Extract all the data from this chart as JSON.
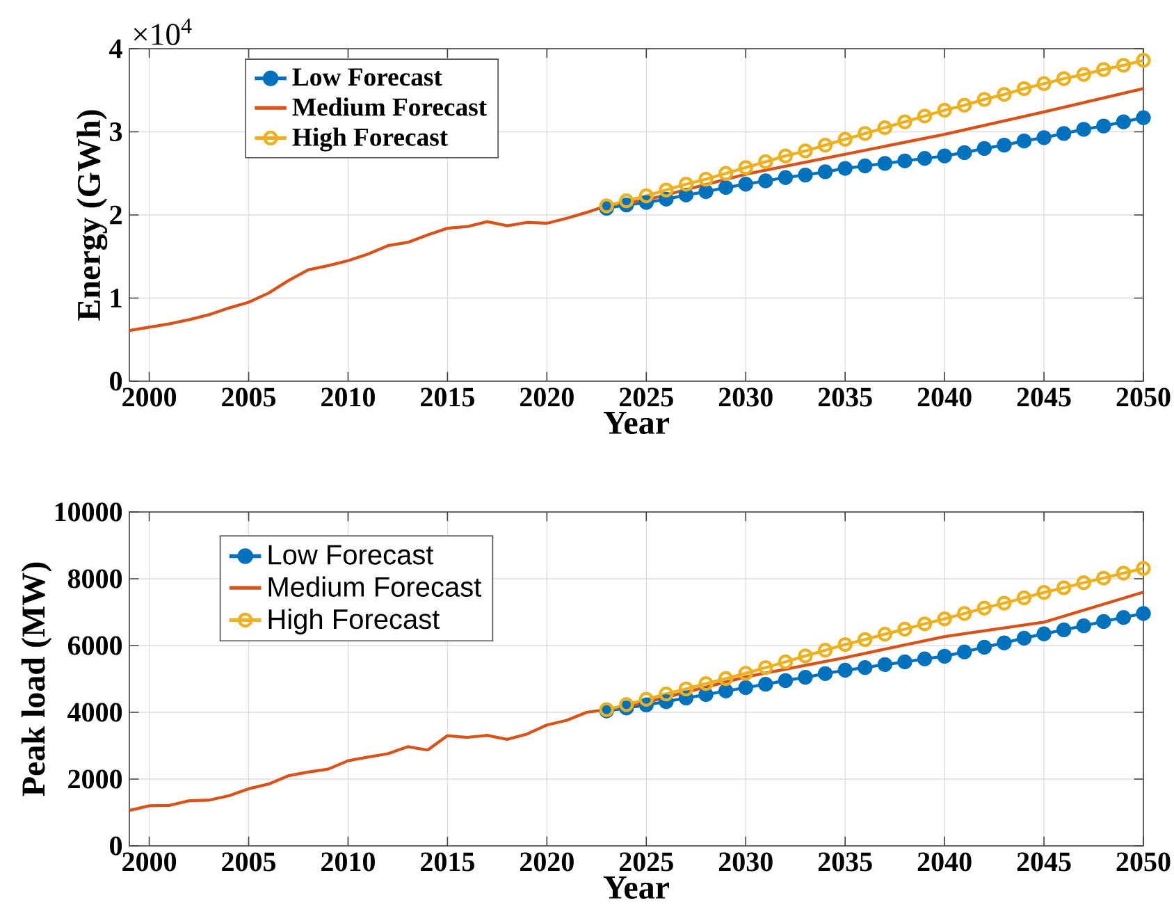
{
  "chart_data": [
    {
      "type": "line",
      "xlabel": "Year",
      "ylabel": "Energy (GWh)",
      "annotations": [
        "×10$^{4}$"
      ],
      "xlim": [
        1999,
        2050
      ],
      "ylim": [
        0,
        4
      ],
      "xticks": [
        2000,
        2005,
        2010,
        2015,
        2020,
        2025,
        2030,
        2035,
        2040,
        2045,
        2050
      ],
      "yticks": [
        0,
        1,
        2,
        3,
        4
      ],
      "grid": true,
      "legend": "top left",
      "line_style": "solid",
      "series": [
        {
          "name": "Low Forecast",
          "color": "#0072bd",
          "marker": "circle",
          "x": [
            2023,
            2024,
            2025,
            2026,
            2027,
            2028,
            2029,
            2030,
            2031,
            2032,
            2033,
            2034,
            2035,
            2036,
            2037,
            2038,
            2039,
            2040,
            2041,
            2042,
            2043,
            2044,
            2045,
            2046,
            2047,
            2048,
            2049,
            2050
          ],
          "values": [
            2.08,
            2.12,
            2.15,
            2.19,
            2.24,
            2.28,
            2.33,
            2.37,
            2.41,
            2.45,
            2.48,
            2.52,
            2.56,
            2.59,
            2.62,
            2.65,
            2.68,
            2.71,
            2.75,
            2.8,
            2.84,
            2.89,
            2.93,
            2.98,
            3.03,
            3.07,
            3.12,
            3.17
          ]
        },
        {
          "name": "Medium Forecast",
          "color": "#d95319",
          "marker": "none",
          "x": [
            1999,
            2000,
            2001,
            2002,
            2003,
            2004,
            2005,
            2006,
            2007,
            2008,
            2009,
            2010,
            2011,
            2012,
            2013,
            2014,
            2015,
            2016,
            2017,
            2018,
            2019,
            2020,
            2021,
            2022,
            2023,
            2025,
            2030,
            2035,
            2040,
            2045,
            2050
          ],
          "values": [
            0.61,
            0.65,
            0.69,
            0.74,
            0.8,
            0.88,
            0.95,
            1.06,
            1.21,
            1.34,
            1.39,
            1.45,
            1.53,
            1.63,
            1.67,
            1.76,
            1.84,
            1.86,
            1.92,
            1.87,
            1.91,
            1.9,
            1.96,
            2.03,
            2.11,
            2.18,
            2.49,
            2.73,
            2.97,
            3.24,
            3.52
          ]
        },
        {
          "name": "High Forecast",
          "color": "#edb120",
          "marker": "circle",
          "x": [
            2023,
            2024,
            2025,
            2026,
            2027,
            2028,
            2029,
            2030,
            2031,
            2032,
            2033,
            2034,
            2035,
            2036,
            2037,
            2038,
            2039,
            2040,
            2041,
            2042,
            2043,
            2044,
            2045,
            2046,
            2047,
            2048,
            2049,
            2050
          ],
          "values": [
            2.11,
            2.17,
            2.23,
            2.3,
            2.37,
            2.43,
            2.5,
            2.57,
            2.64,
            2.71,
            2.77,
            2.84,
            2.91,
            2.98,
            3.05,
            3.12,
            3.19,
            3.26,
            3.32,
            3.39,
            3.45,
            3.52,
            3.58,
            3.64,
            3.69,
            3.75,
            3.8,
            3.86
          ]
        }
      ]
    },
    {
      "type": "line",
      "xlabel": "Year",
      "ylabel": "Peak load (MW)",
      "xlim": [
        1999,
        2050
      ],
      "ylim": [
        0,
        10000
      ],
      "xticks": [
        2000,
        2005,
        2010,
        2015,
        2020,
        2025,
        2030,
        2035,
        2040,
        2045,
        2050
      ],
      "yticks": [
        0,
        2000,
        4000,
        6000,
        8000,
        10000
      ],
      "grid": true,
      "legend": "top left",
      "line_style": "solid",
      "series": [
        {
          "name": "Low Forecast",
          "color": "#0072bd",
          "marker": "circle",
          "x": [
            2023,
            2024,
            2025,
            2026,
            2027,
            2028,
            2029,
            2030,
            2031,
            2032,
            2033,
            2034,
            2035,
            2036,
            2037,
            2038,
            2039,
            2040,
            2041,
            2042,
            2043,
            2044,
            2045,
            2046,
            2047,
            2048,
            2049,
            2050
          ],
          "values": [
            4040,
            4130,
            4220,
            4320,
            4430,
            4530,
            4640,
            4740,
            4840,
            4950,
            5050,
            5160,
            5260,
            5340,
            5430,
            5510,
            5600,
            5680,
            5810,
            5950,
            6080,
            6220,
            6350,
            6470,
            6590,
            6720,
            6840,
            6960
          ]
        },
        {
          "name": "Medium Forecast",
          "color": "#d95319",
          "marker": "none",
          "x": [
            1999,
            2000,
            2001,
            2002,
            2003,
            2004,
            2005,
            2006,
            2007,
            2008,
            2009,
            2010,
            2011,
            2012,
            2013,
            2014,
            2015,
            2016,
            2017,
            2018,
            2019,
            2020,
            2021,
            2022,
            2023,
            2025,
            2030,
            2035,
            2040,
            2045,
            2050
          ],
          "values": [
            1060,
            1200,
            1210,
            1350,
            1370,
            1500,
            1710,
            1850,
            2100,
            2210,
            2300,
            2550,
            2660,
            2760,
            2970,
            2870,
            3300,
            3250,
            3310,
            3190,
            3350,
            3620,
            3760,
            4000,
            4080,
            4300,
            5060,
            5640,
            6270,
            6700,
            7600
          ]
        },
        {
          "name": "High Forecast",
          "color": "#edb120",
          "marker": "circle",
          "x": [
            2023,
            2024,
            2025,
            2026,
            2027,
            2028,
            2029,
            2030,
            2031,
            2032,
            2033,
            2034,
            2035,
            2036,
            2037,
            2038,
            2039,
            2040,
            2041,
            2042,
            2043,
            2044,
            2045,
            2046,
            2047,
            2048,
            2049,
            2050
          ],
          "values": [
            4080,
            4230,
            4390,
            4550,
            4700,
            4860,
            5010,
            5170,
            5340,
            5510,
            5690,
            5860,
            6030,
            6180,
            6340,
            6490,
            6650,
            6800,
            6960,
            7120,
            7270,
            7430,
            7590,
            7730,
            7880,
            8020,
            8170,
            8310
          ]
        }
      ]
    }
  ]
}
